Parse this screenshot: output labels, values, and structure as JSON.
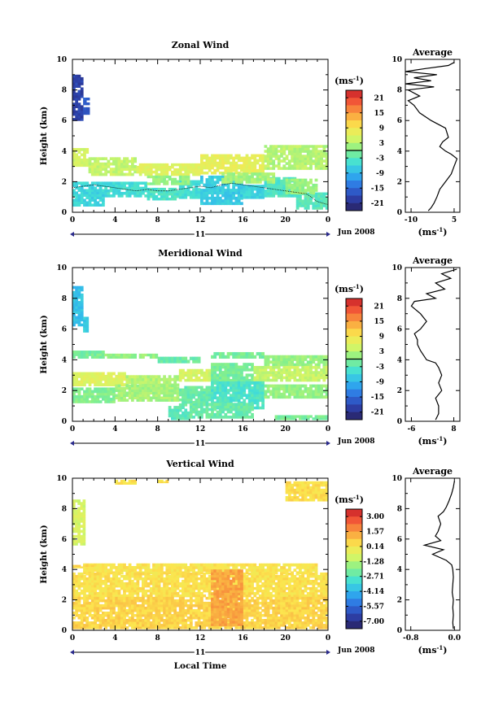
{
  "figure": {
    "units_label": "(ms",
    "units_sup": "-1",
    "units_close": ")",
    "date_label": "Jun 2008",
    "day_label": "11",
    "x_label": "Local Time",
    "y_label": "Height (km)",
    "avg_title": "Average"
  },
  "chart_data": [
    {
      "type": "heatmap",
      "title": "Zonal Wind",
      "ylabel": "Height (km)",
      "xlim": [
        0,
        24
      ],
      "ylim": [
        0,
        10
      ],
      "x_ticks": [
        "0",
        "4",
        "8",
        "12",
        "16",
        "20",
        "0"
      ],
      "y_ticks": [
        "0",
        "2",
        "4",
        "6",
        "8",
        "10"
      ],
      "colorbar": {
        "ticks": [
          "21",
          "15",
          "9",
          "3",
          "-3",
          "-9",
          "-15",
          "-21"
        ],
        "range": [
          -24,
          24
        ],
        "zero_line": true
      },
      "blocks": [
        [
          0,
          1,
          6,
          9,
          -19
        ],
        [
          1,
          1.6,
          6.4,
          7.5,
          -16
        ],
        [
          0,
          1.5,
          3,
          4.2,
          5
        ],
        [
          1.5,
          6,
          2.4,
          3.6,
          4
        ],
        [
          6,
          12,
          2.4,
          3.2,
          6
        ],
        [
          12,
          18,
          2.5,
          3.8,
          7
        ],
        [
          18,
          24,
          2.8,
          4.4,
          3
        ],
        [
          0,
          3,
          0.4,
          2.0,
          -6
        ],
        [
          3,
          7,
          1.0,
          2.0,
          -5
        ],
        [
          7,
          10,
          0.8,
          1.6,
          -4
        ],
        [
          10,
          12,
          0.9,
          2.1,
          -5
        ],
        [
          12,
          16,
          0.5,
          2.4,
          -7
        ],
        [
          16,
          18,
          0.9,
          1.8,
          -6
        ],
        [
          18,
          21,
          1.0,
          2.3,
          -4
        ],
        [
          21,
          24,
          0.2,
          1.3,
          -3
        ],
        [
          7,
          11,
          1.8,
          2.4,
          1
        ],
        [
          14,
          19,
          1.9,
          2.6,
          2
        ],
        [
          20,
          23,
          1.2,
          2.2,
          1
        ]
      ],
      "zero_contour": {
        "x": [
          0,
          1,
          2,
          3,
          4,
          5,
          6,
          7,
          8,
          9,
          10,
          11,
          12,
          13,
          14,
          15,
          16,
          17,
          18,
          19,
          20,
          21,
          22,
          23,
          24
        ],
        "y": [
          1.6,
          1.7,
          1.8,
          1.7,
          1.6,
          1.5,
          1.4,
          1.5,
          1.4,
          1.4,
          1.5,
          1.6,
          1.7,
          1.6,
          1.8,
          1.9,
          1.8,
          1.7,
          1.6,
          1.5,
          1.4,
          1.3,
          1.2,
          0.7,
          0.5
        ]
      },
      "profile": {
        "title": "Average",
        "xlim": [
          -12,
          7
        ],
        "x_ticks": [
          "-10",
          "5"
        ],
        "x_tick_values": [
          -10,
          5
        ],
        "y_ticks": [
          "0",
          "2",
          "4",
          "6",
          "8",
          "10"
        ],
        "heights": [
          0.1,
          0.3,
          0.6,
          1,
          1.5,
          2,
          2.5,
          3,
          3.5,
          3.8,
          4,
          4.3,
          4.6,
          4.9,
          5.5,
          6,
          6.5,
          7,
          7.3,
          7.6,
          8,
          8.2,
          8.4,
          8.6,
          8.8,
          9,
          9.2,
          9.4,
          9.6,
          9.8
        ],
        "values": [
          -4,
          -3,
          -2,
          -1,
          0,
          2,
          4,
          5,
          6,
          4,
          2,
          0,
          1,
          3,
          2,
          -3,
          -7,
          -9,
          -11,
          -7,
          -11,
          -2,
          -12,
          -3,
          -9,
          -1,
          -12,
          -5,
          3,
          5
        ]
      }
    },
    {
      "type": "heatmap",
      "title": "Meridional Wind",
      "ylabel": "Height (km)",
      "xlim": [
        0,
        24
      ],
      "ylim": [
        0,
        10
      ],
      "x_ticks": [
        "0",
        "4",
        "8",
        "12",
        "16",
        "20",
        "0"
      ],
      "y_ticks": [
        "0",
        "2",
        "4",
        "6",
        "8",
        "10"
      ],
      "colorbar": {
        "ticks": [
          "21",
          "15",
          "9",
          "3",
          "-3",
          "-9",
          "-15",
          "-21"
        ],
        "range": [
          -24,
          24
        ],
        "zero_line": true
      },
      "blocks": [
        [
          0,
          1,
          6.2,
          8.8,
          -8
        ],
        [
          1,
          1.5,
          5.8,
          6.8,
          -7
        ],
        [
          0,
          3,
          4.1,
          4.6,
          -1
        ],
        [
          3,
          8,
          4.1,
          4.4,
          1
        ],
        [
          8,
          12,
          3.8,
          4.2,
          -2
        ],
        [
          13,
          18,
          4.1,
          4.5,
          -1
        ],
        [
          18,
          24,
          3.6,
          4.3,
          1
        ],
        [
          0,
          5,
          2.3,
          3.2,
          6
        ],
        [
          5,
          10,
          2.1,
          3.0,
          3
        ],
        [
          10,
          13,
          2.6,
          3.4,
          5
        ],
        [
          13,
          17,
          2.4,
          3.8,
          -1
        ],
        [
          17,
          24,
          2.6,
          3.6,
          4
        ],
        [
          0,
          4,
          1.2,
          2.2,
          0
        ],
        [
          4,
          10,
          1.3,
          2.4,
          2
        ],
        [
          10,
          13,
          1.0,
          2.3,
          -2
        ],
        [
          13,
          18,
          0.8,
          2.6,
          -4
        ],
        [
          18,
          24,
          1.5,
          2.4,
          1
        ],
        [
          9,
          11,
          0.1,
          1.0,
          -3
        ],
        [
          11,
          17,
          0.2,
          1.2,
          -2
        ],
        [
          19,
          24,
          0.1,
          0.4,
          -1
        ]
      ],
      "zero_contour": {
        "x": [],
        "y": []
      },
      "profile": {
        "title": "Average",
        "xlim": [
          -8,
          10
        ],
        "x_ticks": [
          "-6",
          "8"
        ],
        "x_tick_values": [
          -6,
          8
        ],
        "y_ticks": [
          "0",
          "2",
          "4",
          "6",
          "8",
          "10"
        ],
        "heights": [
          0.1,
          0.5,
          1,
          1.5,
          2,
          2.5,
          3,
          3.5,
          3.8,
          4,
          4.3,
          4.6,
          5,
          5.3,
          5.7,
          6,
          6.5,
          7,
          7.5,
          7.8,
          8,
          8.3,
          8.6,
          9,
          9.3,
          9.6,
          9.9
        ],
        "values": [
          2,
          3,
          3,
          2,
          4,
          3,
          4,
          3,
          2,
          -1,
          -2,
          -3,
          -4,
          -4,
          -5,
          -3,
          -1,
          -3,
          -6,
          -5,
          2,
          -1,
          5,
          2,
          7,
          4,
          9
        ]
      }
    },
    {
      "type": "heatmap",
      "title": "Vertical Wind",
      "ylabel": "Height (km)",
      "xlabel": "Local Time",
      "xlim": [
        0,
        24
      ],
      "ylim": [
        0,
        10
      ],
      "x_ticks": [
        "0",
        "4",
        "8",
        "12",
        "16",
        "20",
        "0"
      ],
      "y_ticks": [
        "0",
        "2",
        "4",
        "6",
        "8",
        "10"
      ],
      "colorbar": {
        "ticks": [
          "3.00",
          "1.57",
          "0.14",
          "-1.28",
          "-2.71",
          "-4.14",
          "-5.57",
          "-7.00"
        ],
        "range": [
          -8.43,
          4.43
        ],
        "zero_line": false
      },
      "blocks": [
        [
          0,
          1.2,
          5.6,
          8.6,
          -0.6
        ],
        [
          1,
          23,
          3.7,
          4.4,
          0.5
        ],
        [
          0,
          2,
          4.1,
          4.3,
          0.8
        ],
        [
          0,
          24,
          2.2,
          3.8,
          0.6
        ],
        [
          0,
          24,
          0.1,
          2.2,
          0.9
        ],
        [
          13,
          16,
          0.3,
          4.0,
          1.8
        ],
        [
          20,
          24,
          8.5,
          9.8,
          0.7
        ],
        [
          4,
          6,
          9.6,
          9.9,
          0.6
        ],
        [
          8,
          9,
          9.7,
          9.9,
          0.6
        ]
      ],
      "zero_contour": {
        "x": [],
        "y": []
      },
      "profile": {
        "title": "Average",
        "xlim": [
          -0.9,
          0.1
        ],
        "x_ticks": [
          "-0.8",
          "0.0"
        ],
        "x_tick_values": [
          -0.8,
          0.0
        ],
        "y_ticks": [
          "0",
          "2",
          "4",
          "6",
          "8",
          "10"
        ],
        "heights": [
          0.1,
          0.5,
          1,
          1.5,
          2,
          2.5,
          3,
          3.5,
          4,
          4.3,
          4.6,
          5,
          5.3,
          5.6,
          5.9,
          6.2,
          6.5,
          7,
          7.5,
          7.8,
          8.1,
          8.5,
          9,
          9.4,
          9.8
        ],
        "values": [
          -0.02,
          -0.03,
          -0.02,
          -0.03,
          -0.02,
          -0.04,
          -0.03,
          -0.02,
          -0.03,
          -0.05,
          -0.15,
          -0.4,
          -0.2,
          -0.55,
          -0.25,
          -0.35,
          -0.3,
          -0.25,
          -0.3,
          -0.2,
          -0.15,
          -0.1,
          -0.05,
          -0.02,
          0.0
        ]
      }
    }
  ]
}
